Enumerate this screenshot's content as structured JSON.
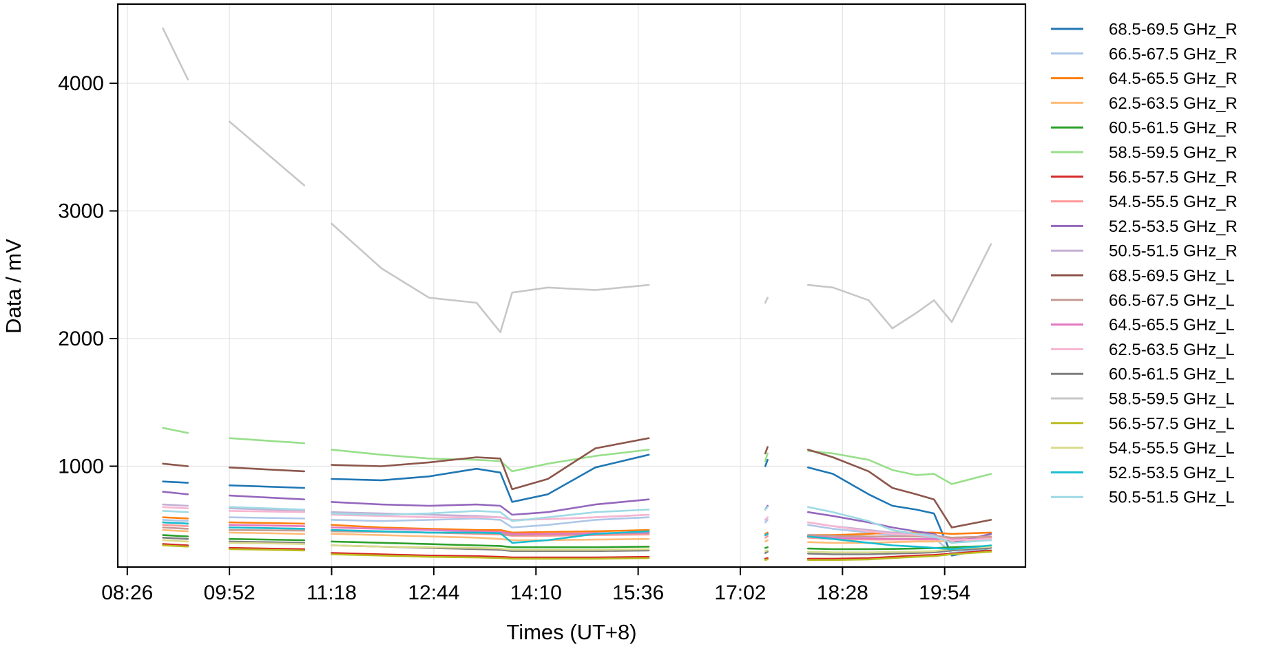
{
  "chart_data": {
    "type": "line",
    "title": "",
    "xlabel": "Times (UT+8)",
    "ylabel": "Data / mV",
    "x_tick_labels": [
      "08:26",
      "09:52",
      "11:18",
      "12:44",
      "14:10",
      "15:36",
      "17:02",
      "18:28",
      "19:54"
    ],
    "x_tick_minutes": [
      506,
      592,
      678,
      764,
      850,
      936,
      1022,
      1108,
      1194
    ],
    "x_range_minutes": [
      498,
      1262
    ],
    "y_ticks": [
      1000,
      2000,
      3000,
      4000
    ],
    "ylim": [
      210,
      4620
    ],
    "grid": true,
    "legend_position": "outside-right",
    "segments_minutes": [
      [
        536,
        557
      ],
      [
        592,
        655
      ],
      [
        678,
        945
      ],
      [
        1043,
        1045
      ],
      [
        1079,
        1233
      ]
    ],
    "x_sample_minutes": [
      536,
      557,
      592,
      655,
      678,
      720,
      760,
      800,
      820,
      830,
      860,
      900,
      945,
      1043,
      1045,
      1079,
      1100,
      1130,
      1150,
      1170,
      1185,
      1200,
      1233
    ],
    "series": [
      {
        "name": "68.5-69.5 GHz_R",
        "color": "#1f77b4",
        "values": [
          880,
          870,
          850,
          830,
          900,
          890,
          920,
          980,
          950,
          720,
          780,
          990,
          1090,
          1000,
          1050,
          990,
          940,
          780,
          690,
          660,
          630,
          300,
          360
        ]
      },
      {
        "name": "66.5-67.5 GHz_R",
        "color": "#aec7e8",
        "values": [
          580,
          570,
          600,
          590,
          580,
          570,
          580,
          590,
          580,
          520,
          540,
          580,
          600,
          560,
          580,
          540,
          510,
          480,
          460,
          450,
          440,
          320,
          360
        ]
      },
      {
        "name": "64.5-65.5 GHz_R",
        "color": "#ff7f0e",
        "values": [
          600,
          590,
          560,
          550,
          540,
          520,
          510,
          500,
          500,
          480,
          485,
          490,
          500,
          470,
          480,
          460,
          460,
          470,
          480,
          480,
          480,
          470,
          480
        ]
      },
      {
        "name": "62.5-63.5 GHz_R",
        "color": "#ffbb78",
        "values": [
          500,
          490,
          480,
          470,
          470,
          460,
          450,
          440,
          430,
          420,
          420,
          425,
          430,
          410,
          420,
          405,
          400,
          400,
          405,
          410,
          410,
          415,
          420
        ]
      },
      {
        "name": "60.5-61.5 GHz_R",
        "color": "#2ca02c",
        "values": [
          460,
          450,
          430,
          420,
          410,
          400,
          390,
          380,
          375,
          365,
          365,
          365,
          370,
          360,
          365,
          355,
          350,
          350,
          352,
          355,
          358,
          365,
          375
        ]
      },
      {
        "name": "58.5-59.5 GHz_R",
        "color": "#98df8a",
        "values": [
          1300,
          1260,
          1220,
          1180,
          1130,
          1090,
          1060,
          1050,
          1040,
          960,
          1020,
          1080,
          1130,
          1040,
          1100,
          1120,
          1100,
          1050,
          970,
          930,
          940,
          860,
          940
        ]
      },
      {
        "name": "56.5-57.5 GHz_R",
        "color": "#d62728",
        "values": [
          390,
          380,
          360,
          350,
          320,
          310,
          300,
          295,
          290,
          285,
          285,
          285,
          290,
          275,
          280,
          275,
          275,
          280,
          290,
          300,
          305,
          315,
          340
        ]
      },
      {
        "name": "54.5-55.5 GHz_R",
        "color": "#ff9896",
        "values": [
          540,
          530,
          520,
          510,
          500,
          490,
          480,
          470,
          465,
          455,
          455,
          460,
          465,
          440,
          450,
          440,
          430,
          425,
          425,
          425,
          425,
          430,
          440
        ]
      },
      {
        "name": "52.5-53.5 GHz_R",
        "color": "#9467bd",
        "values": [
          800,
          780,
          770,
          740,
          720,
          700,
          690,
          700,
          690,
          620,
          640,
          700,
          740,
          660,
          690,
          640,
          610,
          560,
          520,
          490,
          470,
          400,
          470
        ]
      },
      {
        "name": "50.5-51.5 GHz_R",
        "color": "#c5b0d5",
        "values": [
          700,
          690,
          670,
          650,
          640,
          630,
          620,
          610,
          600,
          580,
          585,
          600,
          620,
          580,
          600,
          560,
          530,
          500,
          480,
          470,
          460,
          440,
          450
        ]
      },
      {
        "name": "68.5-69.5 GHz_L",
        "color": "#8c564b",
        "values": [
          1020,
          1000,
          990,
          960,
          1010,
          1000,
          1030,
          1070,
          1060,
          820,
          900,
          1140,
          1220,
          1100,
          1150,
          1130,
          1070,
          960,
          830,
          780,
          740,
          520,
          580
        ]
      },
      {
        "name": "66.5-67.5 GHz_L",
        "color": "#c49c94",
        "values": [
          520,
          510,
          500,
          495,
          490,
          485,
          480,
          475,
          470,
          460,
          465,
          470,
          475,
          460,
          465,
          460,
          455,
          450,
          450,
          450,
          450,
          440,
          450
        ]
      },
      {
        "name": "64.5-65.5 GHz_L",
        "color": "#e377c2",
        "values": [
          560,
          550,
          540,
          530,
          520,
          510,
          500,
          490,
          485,
          470,
          470,
          475,
          480,
          460,
          470,
          450,
          440,
          435,
          430,
          430,
          430,
          425,
          430
        ]
      },
      {
        "name": "62.5-63.5 GHz_L",
        "color": "#f7b6d2",
        "values": [
          680,
          670,
          650,
          640,
          620,
          610,
          600,
          600,
          600,
          580,
          585,
          600,
          620,
          580,
          600,
          560,
          530,
          490,
          470,
          460,
          450,
          420,
          430
        ]
      },
      {
        "name": "60.5-61.5 GHz_L",
        "color": "#7f7f7f",
        "values": [
          440,
          430,
          410,
          400,
          380,
          370,
          360,
          350,
          345,
          335,
          335,
          335,
          340,
          320,
          330,
          315,
          310,
          310,
          315,
          320,
          325,
          340,
          360
        ]
      },
      {
        "name": "58.5-59.5 GHz_L",
        "color": "#c7c7c7",
        "values": [
          4430,
          4030,
          3700,
          3200,
          2900,
          2550,
          2320,
          2280,
          2050,
          2360,
          2400,
          2380,
          2420,
          2280,
          2320,
          2420,
          2400,
          2300,
          2080,
          2200,
          2300,
          2130,
          2740
        ]
      },
      {
        "name": "56.5-57.5 GHz_L",
        "color": "#bcbd22",
        "values": [
          380,
          370,
          350,
          340,
          310,
          300,
          290,
          285,
          280,
          275,
          275,
          275,
          280,
          265,
          270,
          265,
          265,
          270,
          280,
          290,
          295,
          310,
          330
        ]
      },
      {
        "name": "54.5-55.5 GHz_L",
        "color": "#dbdb8d",
        "values": [
          420,
          410,
          400,
          390,
          380,
          370,
          365,
          360,
          355,
          345,
          345,
          345,
          350,
          335,
          340,
          330,
          325,
          325,
          328,
          330,
          335,
          350,
          370
        ]
      },
      {
        "name": "52.5-53.5 GHz_L",
        "color": "#17becf",
        "values": [
          560,
          550,
          520,
          510,
          500,
          490,
          480,
          480,
          475,
          400,
          420,
          470,
          490,
          460,
          470,
          450,
          430,
          400,
          380,
          370,
          360,
          350,
          380
        ]
      },
      {
        "name": "50.5-51.5 GHz_L",
        "color": "#9edae5",
        "values": [
          650,
          640,
          680,
          660,
          630,
          620,
          630,
          650,
          640,
          570,
          600,
          640,
          660,
          660,
          680,
          680,
          640,
          570,
          500,
          470,
          450,
          400,
          420
        ]
      }
    ]
  }
}
